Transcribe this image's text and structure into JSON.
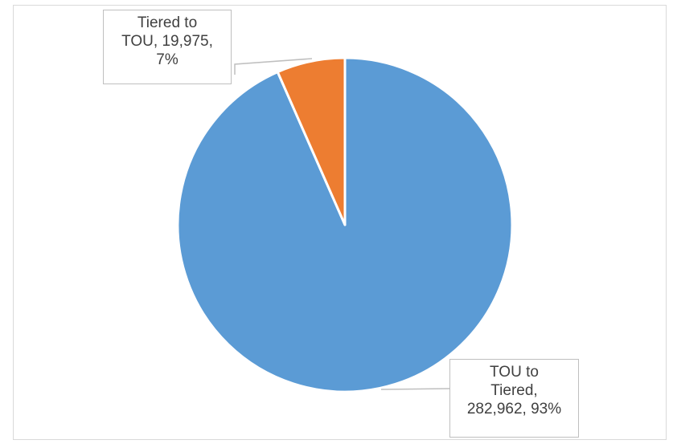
{
  "chart_data": {
    "type": "pie",
    "title": "",
    "start_angle_deg": 0,
    "direction": "clockwise",
    "slices": [
      {
        "name": "TOU to Tiered",
        "value": 282962,
        "percent": 93,
        "color": "#5b9bd5",
        "label_lines": [
          "TOU to",
          "Tiered,",
          "282,962, 93%"
        ]
      },
      {
        "name": "Tiered to TOU",
        "value": 19975,
        "percent": 7,
        "color": "#ed7d31",
        "label_lines": [
          "Tiered to",
          "TOU, 19,975,",
          "7%"
        ]
      }
    ],
    "legend": "none",
    "data_labels": "callout"
  }
}
